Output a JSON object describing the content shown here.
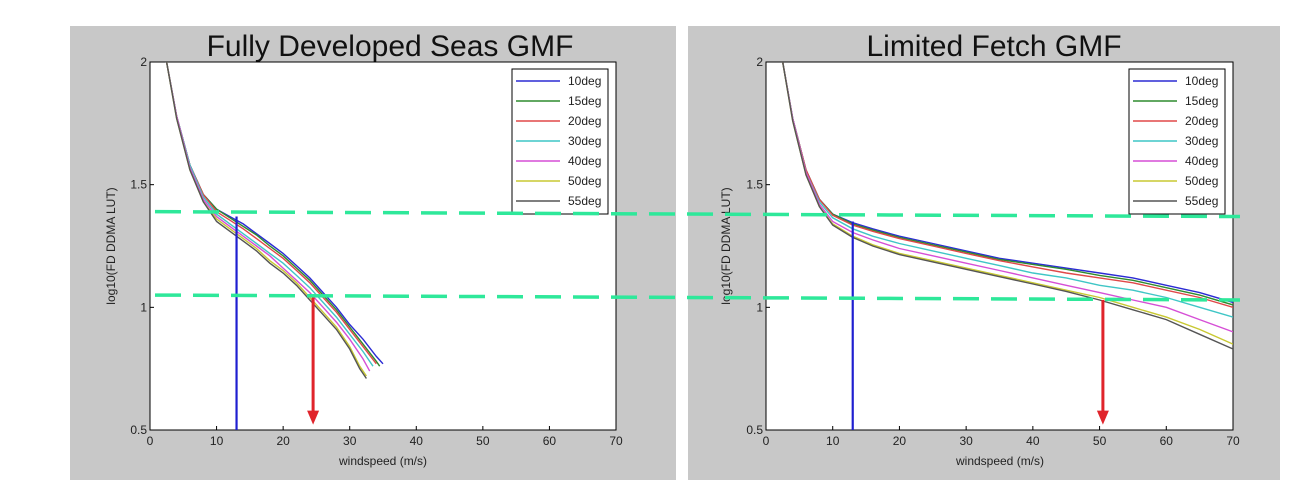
{
  "chart_data": [
    {
      "type": "line",
      "title": "Fully Developed Seas GMF",
      "xlabel": "windspeed (m/s)",
      "ylabel": "log10(FD DDMA LUT)",
      "xlim": [
        0,
        70
      ],
      "ylim": [
        0.5,
        2
      ],
      "xticks": [
        "0",
        "10",
        "20",
        "30",
        "40",
        "50",
        "60",
        "70"
      ],
      "yticks": [
        "0.5",
        "1",
        "1.5",
        "2"
      ],
      "legend": "top-right",
      "grid": false,
      "series": [
        {
          "name": "10deg",
          "color": "#2b2bd4",
          "x": [
            2.5,
            4,
            6,
            8,
            10,
            12,
            14,
            16,
            18,
            20,
            22,
            24,
            26,
            28,
            30,
            32,
            34,
            35
          ],
          "y": [
            2.0,
            1.78,
            1.58,
            1.46,
            1.4,
            1.37,
            1.34,
            1.3,
            1.26,
            1.22,
            1.17,
            1.12,
            1.06,
            1.0,
            0.93,
            0.87,
            0.8,
            0.77
          ]
        },
        {
          "name": "15deg",
          "color": "#2e8b2e",
          "x": [
            2.5,
            4,
            6,
            8,
            10,
            12,
            14,
            16,
            18,
            20,
            22,
            24,
            26,
            28,
            30,
            32,
            34,
            34.5
          ],
          "y": [
            2.0,
            1.78,
            1.58,
            1.46,
            1.4,
            1.365,
            1.33,
            1.295,
            1.25,
            1.21,
            1.16,
            1.11,
            1.05,
            0.99,
            0.92,
            0.85,
            0.78,
            0.76
          ]
        },
        {
          "name": "20deg",
          "color": "#e04848",
          "x": [
            2.5,
            4,
            6,
            8,
            10,
            12,
            14,
            16,
            18,
            20,
            22,
            24,
            26,
            28,
            30,
            32,
            34
          ],
          "y": [
            2.0,
            1.78,
            1.58,
            1.46,
            1.39,
            1.355,
            1.32,
            1.28,
            1.24,
            1.2,
            1.15,
            1.1,
            1.04,
            0.98,
            0.91,
            0.84,
            0.77
          ]
        },
        {
          "name": "30deg",
          "color": "#3fc6c6",
          "x": [
            2.5,
            4,
            6,
            8,
            10,
            12,
            14,
            16,
            18,
            20,
            22,
            24,
            26,
            28,
            30,
            32,
            33.5
          ],
          "y": [
            2.0,
            1.78,
            1.58,
            1.45,
            1.38,
            1.34,
            1.3,
            1.26,
            1.22,
            1.18,
            1.13,
            1.08,
            1.02,
            0.96,
            0.89,
            0.82,
            0.76
          ]
        },
        {
          "name": "40deg",
          "color": "#d64fd6",
          "x": [
            2.5,
            4,
            6,
            8,
            10,
            12,
            14,
            16,
            18,
            20,
            22,
            24,
            26,
            28,
            30,
            32,
            33
          ],
          "y": [
            2.0,
            1.78,
            1.57,
            1.44,
            1.37,
            1.33,
            1.29,
            1.25,
            1.21,
            1.16,
            1.11,
            1.06,
            1.0,
            0.94,
            0.87,
            0.79,
            0.74
          ]
        },
        {
          "name": "50deg",
          "color": "#c8c832",
          "x": [
            2.5,
            4,
            6,
            8,
            10,
            12,
            14,
            16,
            18,
            20,
            22,
            24,
            26,
            28,
            30,
            31.5,
            32.5
          ],
          "y": [
            2.0,
            1.77,
            1.56,
            1.43,
            1.36,
            1.32,
            1.28,
            1.24,
            1.19,
            1.15,
            1.1,
            1.04,
            0.98,
            0.92,
            0.84,
            0.76,
            0.72
          ]
        },
        {
          "name": "55deg",
          "color": "#555555",
          "x": [
            2.5,
            4,
            6,
            8,
            10,
            12,
            14,
            16,
            18,
            20,
            22,
            24,
            26,
            28,
            30,
            31.5,
            32.5
          ],
          "y": [
            2.0,
            1.77,
            1.56,
            1.43,
            1.35,
            1.31,
            1.27,
            1.23,
            1.18,
            1.14,
            1.09,
            1.03,
            0.97,
            0.91,
            0.83,
            0.75,
            0.71
          ]
        }
      ],
      "hlines": [
        1.39,
        1.05
      ],
      "blue_line": {
        "x": 13,
        "y_top": 1.37
      },
      "red_arrow": {
        "x": 24.5,
        "y_top": 1.05,
        "y_bottom": 0.53
      }
    },
    {
      "type": "line",
      "title": "Limited Fetch GMF",
      "xlabel": "windspeed (m/s)",
      "ylabel": "log10(FD DDMA LUT)",
      "xlim": [
        0,
        70
      ],
      "ylim": [
        0.5,
        2
      ],
      "xticks": [
        "0",
        "10",
        "20",
        "30",
        "40",
        "50",
        "60",
        "70"
      ],
      "yticks": [
        "0.5",
        "1",
        "1.5",
        "2"
      ],
      "legend": "top-right",
      "grid": false,
      "series": [
        {
          "name": "10deg",
          "color": "#2b2bd4",
          "x": [
            2.5,
            4,
            6,
            8,
            10,
            13,
            16,
            20,
            25,
            30,
            35,
            40,
            45,
            50,
            55,
            60,
            65,
            70
          ],
          "y": [
            2.0,
            1.77,
            1.56,
            1.44,
            1.38,
            1.345,
            1.32,
            1.29,
            1.26,
            1.23,
            1.2,
            1.18,
            1.16,
            1.14,
            1.12,
            1.09,
            1.06,
            1.02
          ]
        },
        {
          "name": "15deg",
          "color": "#2e8b2e",
          "x": [
            2.5,
            4,
            6,
            8,
            10,
            13,
            16,
            20,
            25,
            30,
            35,
            40,
            45,
            50,
            55,
            60,
            65,
            70
          ],
          "y": [
            2.0,
            1.77,
            1.56,
            1.44,
            1.38,
            1.34,
            1.315,
            1.285,
            1.255,
            1.225,
            1.195,
            1.175,
            1.155,
            1.13,
            1.11,
            1.08,
            1.05,
            1.01
          ]
        },
        {
          "name": "20deg",
          "color": "#e04848",
          "x": [
            2.5,
            4,
            6,
            8,
            10,
            13,
            16,
            20,
            25,
            30,
            35,
            40,
            45,
            50,
            55,
            60,
            65,
            70
          ],
          "y": [
            2.0,
            1.77,
            1.56,
            1.44,
            1.375,
            1.335,
            1.31,
            1.28,
            1.25,
            1.22,
            1.19,
            1.165,
            1.14,
            1.12,
            1.1,
            1.07,
            1.04,
            1.0
          ]
        },
        {
          "name": "30deg",
          "color": "#3fc6c6",
          "x": [
            2.5,
            4,
            6,
            8,
            10,
            13,
            16,
            20,
            25,
            30,
            35,
            40,
            45,
            50,
            55,
            60,
            65,
            70
          ],
          "y": [
            2.0,
            1.77,
            1.55,
            1.43,
            1.365,
            1.32,
            1.29,
            1.26,
            1.23,
            1.2,
            1.17,
            1.14,
            1.12,
            1.09,
            1.07,
            1.04,
            1.0,
            0.96
          ]
        },
        {
          "name": "40deg",
          "color": "#d64fd6",
          "x": [
            2.5,
            4,
            6,
            8,
            10,
            13,
            16,
            20,
            25,
            30,
            35,
            40,
            45,
            50,
            55,
            60,
            65,
            70
          ],
          "y": [
            2.0,
            1.77,
            1.55,
            1.42,
            1.35,
            1.305,
            1.275,
            1.24,
            1.21,
            1.18,
            1.15,
            1.12,
            1.09,
            1.06,
            1.03,
            1.0,
            0.95,
            0.9
          ]
        },
        {
          "name": "50deg",
          "color": "#c8c832",
          "x": [
            2.5,
            4,
            6,
            8,
            10,
            13,
            16,
            20,
            25,
            30,
            35,
            40,
            45,
            50,
            55,
            60,
            65,
            70
          ],
          "y": [
            2.0,
            1.76,
            1.54,
            1.41,
            1.34,
            1.29,
            1.255,
            1.22,
            1.19,
            1.16,
            1.13,
            1.1,
            1.07,
            1.04,
            1.0,
            0.96,
            0.91,
            0.85
          ]
        },
        {
          "name": "55deg",
          "color": "#555555",
          "x": [
            2.5,
            4,
            6,
            8,
            10,
            13,
            16,
            20,
            25,
            30,
            35,
            40,
            45,
            50,
            55,
            60,
            65,
            70
          ],
          "y": [
            2.0,
            1.76,
            1.54,
            1.41,
            1.335,
            1.285,
            1.25,
            1.215,
            1.185,
            1.155,
            1.125,
            1.095,
            1.065,
            1.03,
            0.99,
            0.95,
            0.89,
            0.83
          ]
        }
      ],
      "hlines": [
        1.37,
        1.03
      ],
      "blue_line": {
        "x": 13,
        "y_top": 1.35
      },
      "red_arrow": {
        "x": 50.5,
        "y_top": 1.03,
        "y_bottom": 0.53
      }
    }
  ],
  "colors": {
    "panel_bg": "#c8c8c8",
    "plot_bg": "#ffffff",
    "dash": "#2ee89a",
    "blue_line": "#1f1fd0",
    "red_arrow": "#e0242b"
  }
}
